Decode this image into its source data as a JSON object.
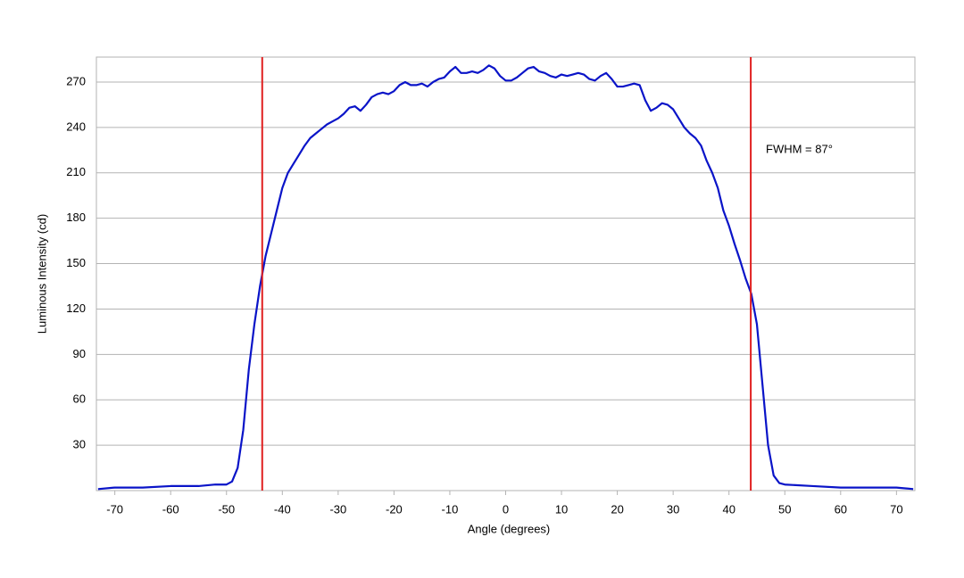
{
  "chart_data": {
    "type": "line",
    "x_label": "Angle (degrees)",
    "y_label": "Luminous Intensity (cd)",
    "annotation": "FWHM = 87°",
    "x": [
      -73,
      -70,
      -65,
      -60,
      -55,
      -52,
      -50,
      -49,
      -48,
      -47,
      -46,
      -45,
      -44,
      -43,
      -42,
      -41,
      -40,
      -39,
      -38,
      -37,
      -36,
      -35,
      -34,
      -33,
      -32,
      -31,
      -30,
      -29,
      -28,
      -27,
      -26,
      -25,
      -24,
      -23,
      -22,
      -21,
      -20,
      -19,
      -18,
      -17,
      -16,
      -15,
      -14,
      -13,
      -12,
      -11,
      -10,
      -9,
      -8,
      -7,
      -6,
      -5,
      -4,
      -3,
      -2,
      -1,
      0,
      1,
      2,
      3,
      4,
      5,
      6,
      7,
      8,
      9,
      10,
      11,
      12,
      13,
      14,
      15,
      16,
      17,
      18,
      19,
      20,
      21,
      22,
      23,
      24,
      25,
      26,
      27,
      28,
      29,
      30,
      31,
      32,
      33,
      34,
      35,
      36,
      37,
      38,
      39,
      40,
      41,
      42,
      43,
      44,
      45,
      46,
      47,
      48,
      49,
      50,
      55,
      60,
      65,
      70,
      73
    ],
    "series": [
      {
        "color": "#0a14c8",
        "values": [
          1,
          2,
          2,
          3,
          3,
          4,
          4,
          6,
          15,
          40,
          80,
          110,
          135,
          155,
          170,
          185,
          200,
          210,
          216,
          222,
          228,
          233,
          236,
          239,
          242,
          244,
          246,
          249,
          253,
          254,
          251,
          255,
          260,
          262,
          263,
          262,
          264,
          268,
          270,
          268,
          268,
          269,
          267,
          270,
          272,
          273,
          277,
          280,
          276,
          276,
          277,
          276,
          278,
          281,
          279,
          274,
          271,
          271,
          273,
          276,
          279,
          280,
          277,
          276,
          274,
          273,
          275,
          274,
          275,
          276,
          275,
          272,
          271,
          274,
          276,
          272,
          267,
          267,
          268,
          269,
          268,
          258,
          251,
          253,
          256,
          255,
          252,
          246,
          240,
          236,
          233,
          228,
          218,
          210,
          200,
          185,
          175,
          163,
          152,
          140,
          130,
          110,
          70,
          30,
          10,
          5,
          4,
          3,
          2,
          2,
          2,
          1
        ]
      }
    ],
    "vlines": [
      -43.6,
      43.9
    ],
    "vline_color": "#e02020",
    "xlim": [
      -73.3,
      73.3
    ],
    "ylim": [
      0,
      286.5
    ],
    "xticks": [
      -70,
      -60,
      -50,
      -40,
      -30,
      -20,
      -10,
      0,
      10,
      20,
      30,
      40,
      50,
      60,
      70
    ],
    "yticks": [
      30,
      60,
      90,
      120,
      150,
      180,
      210,
      240,
      270
    ],
    "grid": true
  }
}
